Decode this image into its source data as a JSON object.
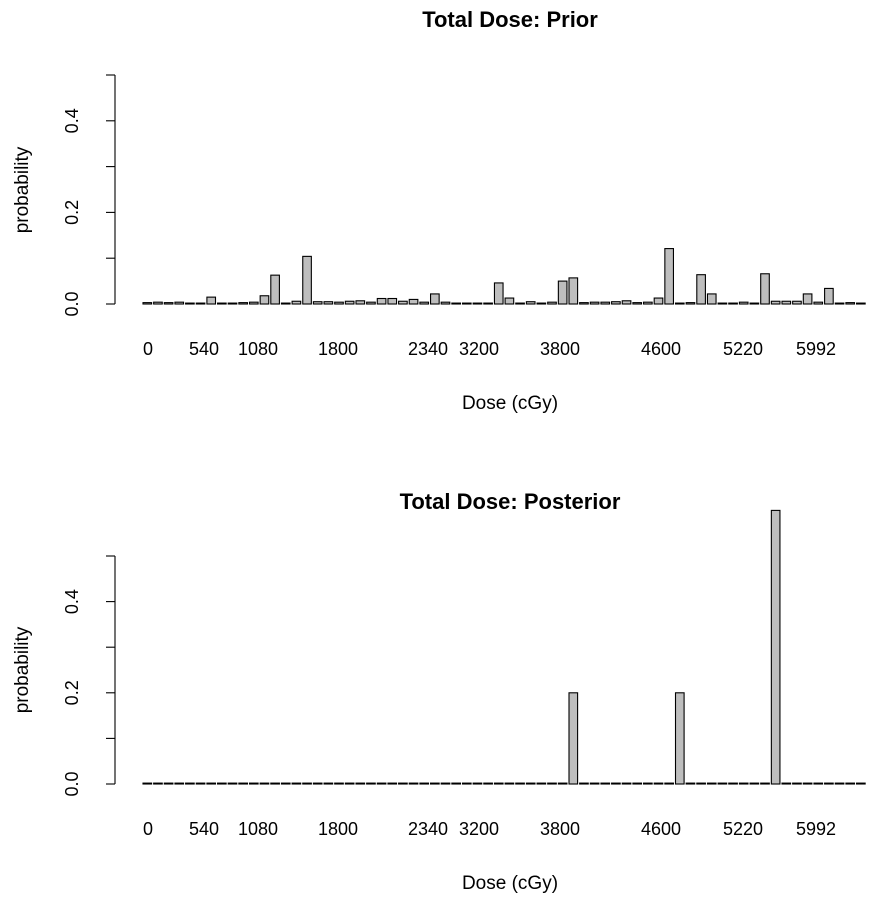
{
  "chart_data": [
    {
      "type": "bar",
      "title": "Total Dose: Prior",
      "xlabel": "Dose (cGy)",
      "ylabel": "probability",
      "ylim": [
        0,
        0.5
      ],
      "y_ticks": [
        "0.0",
        "0.2",
        "0.4"
      ],
      "x_tick_labels": [
        "0",
        "540",
        "1080",
        "1800",
        "2340",
        "3200",
        "3800",
        "4600",
        "5220",
        "5992"
      ],
      "values": [
        0.003,
        0.004,
        0.003,
        0.004,
        0.002,
        0.002,
        0.015,
        0.002,
        0.002,
        0.003,
        0.004,
        0.018,
        0.063,
        0.002,
        0.006,
        0.104,
        0.005,
        0.005,
        0.004,
        0.006,
        0.007,
        0.004,
        0.012,
        0.012,
        0.006,
        0.01,
        0.004,
        0.022,
        0.004,
        0.002,
        0.002,
        0.002,
        0.002,
        0.046,
        0.013,
        0.002,
        0.005,
        0.002,
        0.004,
        0.05,
        0.057,
        0.003,
        0.004,
        0.004,
        0.005,
        0.007,
        0.003,
        0.004,
        0.013,
        0.121,
        0.002,
        0.003,
        0.064,
        0.022,
        0.002,
        0.002,
        0.004,
        0.002,
        0.066,
        0.006,
        0.006,
        0.006,
        0.022,
        0.004,
        0.034,
        0.002,
        0.003,
        0.002
      ]
    },
    {
      "type": "bar",
      "title": "Total Dose: Posterior",
      "xlabel": "Dose (cGy)",
      "ylabel": "probability",
      "ylim": [
        0,
        0.5
      ],
      "y_ticks": [
        "0.0",
        "0.2",
        "0.4"
      ],
      "x_tick_labels": [
        "0",
        "540",
        "1080",
        "1800",
        "2340",
        "3200",
        "3800",
        "4600",
        "5220",
        "5992"
      ],
      "values": [
        0,
        0,
        0,
        0,
        0,
        0,
        0,
        0,
        0,
        0,
        0,
        0,
        0,
        0,
        0,
        0,
        0,
        0,
        0,
        0,
        0,
        0,
        0,
        0,
        0,
        0,
        0,
        0,
        0,
        0,
        0,
        0,
        0,
        0,
        0,
        0,
        0,
        0,
        0,
        0,
        0.2,
        0,
        0,
        0,
        0,
        0,
        0,
        0,
        0,
        0,
        0.2,
        0,
        0,
        0,
        0,
        0,
        0,
        0,
        0,
        0.6,
        0,
        0,
        0,
        0,
        0,
        0,
        0,
        0
      ]
    }
  ]
}
